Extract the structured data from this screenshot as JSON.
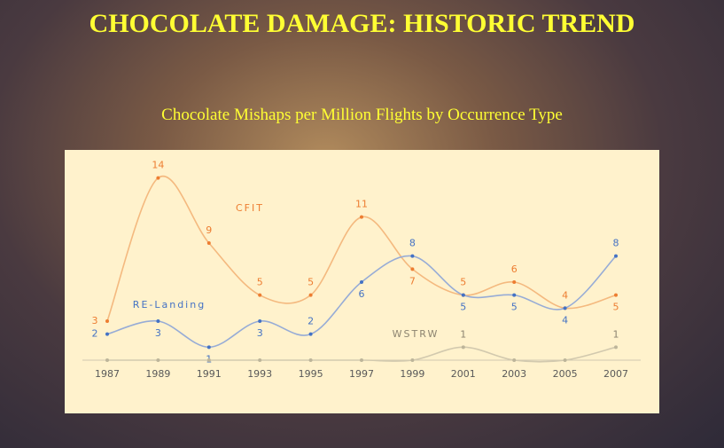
{
  "header": {
    "title": "CHOCOLATE DAMAGE: HISTORIC TREND",
    "subtitle": "Chocolate Mishaps per Million Flights by Occurrence Type"
  },
  "chart_data": {
    "type": "line",
    "smooth": true,
    "categories": [
      "1987",
      "1989",
      "1991",
      "1993",
      "1995",
      "1997",
      "1999",
      "2001",
      "2003",
      "2005",
      "2007"
    ],
    "ylim": [
      0,
      15
    ],
    "series": [
      {
        "name": "CFIT",
        "color": "#ed7d31",
        "values": [
          3,
          14,
          9,
          5,
          5,
          11,
          7,
          5,
          6,
          4,
          5
        ]
      },
      {
        "name": "RE-Landing",
        "color": "#4472c4",
        "values": [
          2,
          3,
          1,
          3,
          2,
          6,
          8,
          5,
          5,
          4,
          8
        ]
      },
      {
        "name": "WSTRW",
        "color": "#a5a5a5",
        "values": [
          0,
          0,
          0,
          0,
          0,
          0,
          0,
          1,
          0,
          0,
          1
        ],
        "value_labels": [
          null,
          null,
          null,
          null,
          null,
          null,
          null,
          "1",
          null,
          null,
          "1"
        ]
      }
    ]
  }
}
